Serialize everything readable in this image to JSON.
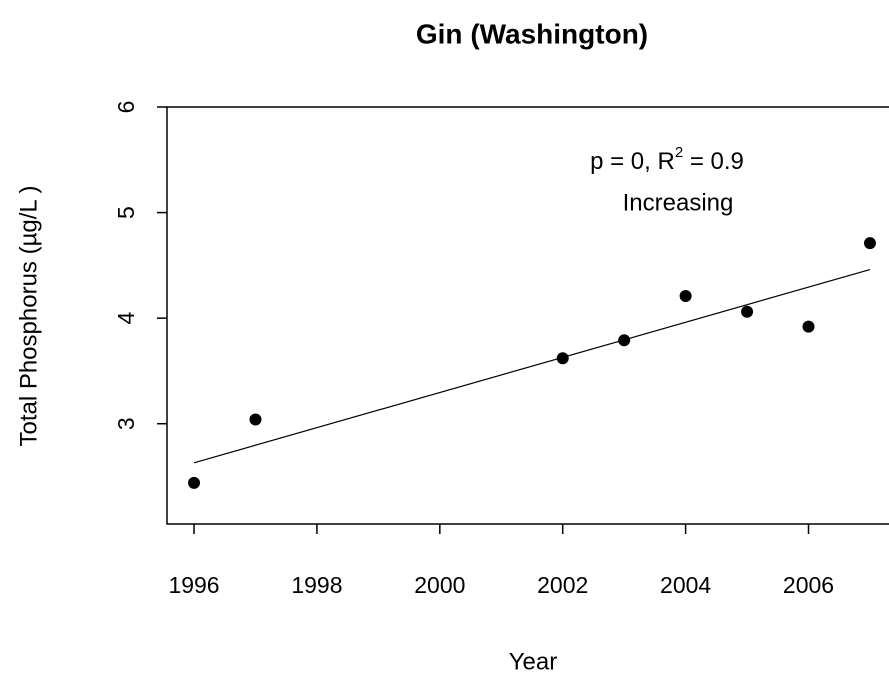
{
  "chart_data": {
    "type": "scatter",
    "title": "Gin (Washington)",
    "x_label": "Year",
    "y_label": "Total Phosphorus (µg/L )",
    "x": [
      1996,
      1997,
      2002,
      2003,
      2004,
      2005,
      2006,
      2007
    ],
    "values": [
      2.44,
      3.04,
      3.62,
      3.79,
      4.21,
      4.06,
      3.92,
      4.71
    ],
    "color": "#000000",
    "trend_line": {
      "x": [
        1996,
        2007
      ],
      "values": [
        2.63,
        4.46
      ],
      "color": "#000000"
    },
    "annotation": {
      "prefix": "p = 0, R",
      "superscript": "2",
      "suffix": " = 0.9",
      "trend": "Increasing"
    },
    "xlim": [
      1995.56,
      2007.44
    ],
    "ylim": [
      2.05,
      6.0
    ],
    "xticks": [
      1996,
      1998,
      2000,
      2002,
      2004,
      2006
    ],
    "yticks": [
      3,
      4,
      5,
      6
    ]
  }
}
